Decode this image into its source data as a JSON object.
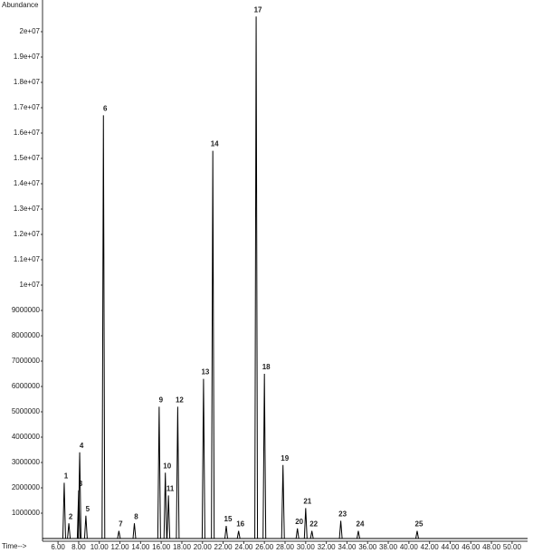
{
  "chart_data": {
    "type": "peaks",
    "y_label": "Abundance",
    "x_label": "Time-->",
    "labels": [
      "1",
      "2",
      "3",
      "4",
      "5",
      "6",
      "7",
      "8",
      "9",
      "10",
      "11",
      "12",
      "13",
      "14",
      "15",
      "16",
      "17",
      "18",
      "19",
      "20",
      "21",
      "22",
      "23",
      "24",
      "25"
    ],
    "x": [
      6.6,
      7.05,
      8.0,
      8.1,
      8.7,
      10.4,
      11.9,
      13.4,
      15.8,
      16.4,
      16.7,
      17.6,
      20.1,
      21.0,
      22.3,
      23.5,
      25.2,
      26.0,
      27.8,
      29.2,
      30.0,
      30.6,
      33.4,
      35.1,
      40.8
    ],
    "values": [
      2200000,
      600000,
      1900000,
      3400000,
      900000,
      16700000,
      300000,
      600000,
      5200000,
      2600000,
      1700000,
      5200000,
      6300000,
      15300000,
      500000,
      300000,
      20600000,
      6500000,
      2900000,
      400000,
      1200000,
      300000,
      700000,
      300000,
      300000
    ],
    "color": "#000000",
    "xlim": [
      4.5,
      51.5
    ],
    "xticks": [
      {
        "value": 6,
        "label": "6.00"
      },
      {
        "value": 8,
        "label": "8.00"
      },
      {
        "value": 10,
        "label": "10.00"
      },
      {
        "value": 12,
        "label": "12.00"
      },
      {
        "value": 14,
        "label": "14.00"
      },
      {
        "value": 16,
        "label": "16.00"
      },
      {
        "value": 18,
        "label": "18.00"
      },
      {
        "value": 20,
        "label": "20.00"
      },
      {
        "value": 22,
        "label": "22.00"
      },
      {
        "value": 24,
        "label": "24.00"
      },
      {
        "value": 26,
        "label": "26.00"
      },
      {
        "value": 28,
        "label": "28.00"
      },
      {
        "value": 30,
        "label": "30.00"
      },
      {
        "value": 32,
        "label": "32.00"
      },
      {
        "value": 34,
        "label": "34.00"
      },
      {
        "value": 36,
        "label": "36.00"
      },
      {
        "value": 38,
        "label": "38.00"
      },
      {
        "value": 40,
        "label": "40.00"
      },
      {
        "value": 42,
        "label": "42.00"
      },
      {
        "value": 44,
        "label": "44.00"
      },
      {
        "value": 46,
        "label": "46.00"
      },
      {
        "value": 48,
        "label": "48.00"
      },
      {
        "value": 50,
        "label": "50.00"
      }
    ],
    "ylim": [
      0,
      21000000
    ],
    "yticks": [
      1000000,
      2000000,
      3000000,
      4000000,
      5000000,
      6000000,
      7000000,
      8000000,
      9000000,
      {
        "value": 10000000,
        "label": "1e+07"
      },
      {
        "value": 11000000,
        "label": "1.1e+07"
      },
      {
        "value": 12000000,
        "label": "1.2e+07"
      },
      {
        "value": 13000000,
        "label": "1.3e+07"
      },
      {
        "value": 14000000,
        "label": "1.4e+07"
      },
      {
        "value": 15000000,
        "label": "1.5e+07"
      },
      {
        "value": 16000000,
        "label": "1.6e+07"
      },
      {
        "value": 17000000,
        "label": "1.7e+07"
      },
      {
        "value": 18000000,
        "label": "1.8e+07"
      },
      {
        "value": 19000000,
        "label": "1.9e+07"
      },
      {
        "value": 20000000,
        "label": "2e+07"
      }
    ]
  }
}
